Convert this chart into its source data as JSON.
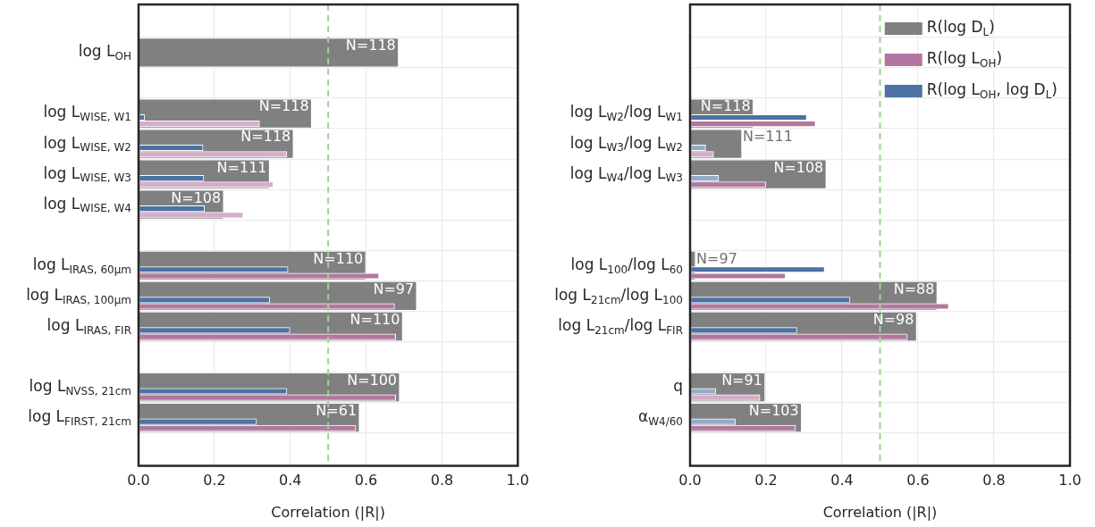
{
  "chart_data": [
    {
      "type": "bar",
      "orientation": "horizontal",
      "xlabel": "Correlation (|R|)",
      "xlim": [
        0,
        1
      ],
      "xticks": [
        {
          "value": 0,
          "label": "0.0"
        },
        {
          "value": 0.2,
          "label": "0.2"
        },
        {
          "value": 0.4,
          "label": "0.4"
        },
        {
          "value": 0.6,
          "label": "0.6"
        },
        {
          "value": 0.8,
          "label": "0.8"
        },
        {
          "value": 1,
          "label": "1.0"
        }
      ],
      "grid": true,
      "legend": false,
      "categories": [
        "log L$_{OH}$",
        null,
        "log L$_{WISE, W1}$",
        "log L$_{WISE, W2}$",
        "log L$_{WISE, W3}$",
        "log L$_{WISE, W4}$",
        null,
        "log L$_{IRAS, 60μm}$",
        "log L$_{IRAS, 100μm}$",
        "log L$_{IRAS, FIR}$",
        null,
        "log L$_{NVSS, 21cm}$",
        "log L$_{FIRST, 21cm}$"
      ],
      "series": [
        {
          "color": "#808080",
          "values": [
            0.683,
            null,
            0.454,
            0.406,
            0.343,
            0.222,
            null,
            0.597,
            0.731,
            0.694,
            null,
            0.686,
            0.58
          ]
        },
        {
          "colors": [
            "#b3779f",
            "#b3779f",
            "#d6adc8",
            "#d6adc8",
            "#d6adc8",
            "#d6adc8",
            "#b3779f",
            "#b3779f",
            "#b3779f",
            "#b3779f",
            "#b3779f",
            "#b3779f",
            "#b3779f"
          ],
          "values": [
            null,
            null,
            0.319,
            0.391,
            0.355,
            0.276,
            null,
            0.634,
            0.675,
            0.678,
            null,
            0.678,
            0.573
          ]
        },
        {
          "color": "#4c72a4",
          "values": [
            null,
            null,
            0.016,
            0.17,
            0.172,
            0.174,
            null,
            0.394,
            0.346,
            0.399,
            null,
            0.391,
            0.311
          ]
        }
      ],
      "annotations": [
        {
          "text": "N=118",
          "x": 0.683,
          "y": "log L$_{OH}$"
        },
        {
          "text": "N=118",
          "x": 0.454,
          "y": "log L$_{WISE, W1}$"
        },
        {
          "text": "N=118",
          "x": 0.406,
          "y": "log L$_{WISE, W2}$"
        },
        {
          "text": "N=111",
          "x": 0.343,
          "y": "log L$_{WISE, W3}$"
        },
        {
          "text": "N=108",
          "x": 0.222,
          "y": "log L$_{WISE, W4}$"
        },
        {
          "text": "N=110",
          "x": 0.597,
          "y": "log L$_{IRAS, 60μm}$"
        },
        {
          "text": "N=97",
          "x": 0.731,
          "y": "log L$_{IRAS, 100μm}$"
        },
        {
          "text": "N=110",
          "x": 0.694,
          "y": "log L$_{IRAS, FIR}$"
        },
        {
          "text": "N=100",
          "x": 0.686,
          "y": "log L$_{NVSS, 21cm}$"
        },
        {
          "text": "N=61",
          "x": 0.58,
          "y": "log L$_{FIRST, 21cm}$"
        }
      ],
      "ref_lines": [
        {
          "axis": "x",
          "value": 0.5,
          "color": "#9fd196",
          "line_style": "dashed"
        }
      ]
    },
    {
      "type": "bar",
      "orientation": "horizontal",
      "xlabel": "Correlation (|R|)",
      "xlim": [
        0,
        1
      ],
      "xticks": [
        {
          "value": 0,
          "label": "0.0"
        },
        {
          "value": 0.2,
          "label": "0.2"
        },
        {
          "value": 0.4,
          "label": "0.4"
        },
        {
          "value": 0.6,
          "label": "0.6"
        },
        {
          "value": 0.8,
          "label": "0.8"
        },
        {
          "value": 1,
          "label": "1.0"
        }
      ],
      "grid": true,
      "legend": "top right",
      "categories": [
        null,
        null,
        "log L$_{W2}$/log L$_{W1}$",
        "log L$_{W3}$/log L$_{W2}$",
        "log L$_{W4}$/log L$_{W3}$",
        null,
        null,
        "log L$_{100}$/log L$_{60}$",
        "log L$_{21cm}$/log L$_{100}$",
        "log L$_{21cm}$/log L$_{FIR}$",
        null,
        "q",
        "α$_{W4/60}$"
      ],
      "series": [
        {
          "name": "R(log D$_{L}$)",
          "color": "#808080",
          "values": [
            null,
            null,
            0.164,
            0.134,
            0.356,
            null,
            null,
            0.012,
            0.648,
            0.594,
            null,
            0.195,
            0.291
          ]
        },
        {
          "name": "R(log L$_{OH}$)",
          "color": "#b3779f",
          "colors": [
            "#b3779f",
            "#b3779f",
            "#b3779f",
            "#d6adc8",
            "#b3779f",
            "#b3779f",
            "#b3779f",
            "#b3779f",
            "#b3779f",
            "#b3779f",
            "#b3779f",
            "#d6adc8",
            "#b3779f"
          ],
          "values": [
            null,
            null,
            0.33,
            0.062,
            0.199,
            null,
            null,
            0.251,
            0.681,
            0.572,
            null,
            0.184,
            0.278
          ]
        },
        {
          "name": "R(log L$_{OH}$, log D$_{L}$)",
          "color": "#4c72a4",
          "colors": [
            "#4c72a4",
            "#4c72a4",
            "#4c72a4",
            "#93abcb",
            "#93abcb",
            "#4c72a4",
            "#4c72a4",
            "#4c72a4",
            "#4c72a4",
            "#4c72a4",
            "#4c72a4",
            "#93abcb",
            "#93abcb"
          ],
          "values": [
            null,
            null,
            0.307,
            0.041,
            0.075,
            null,
            null,
            0.354,
            0.421,
            0.281,
            null,
            0.068,
            0.119
          ]
        }
      ],
      "annotations": [
        {
          "text": "N=118",
          "x": 0.164,
          "y": "log L$_{W2}$/log L$_{W1}$"
        },
        {
          "text": "N=111",
          "x": 0.134,
          "y": "log L$_{W3}$/log L$_{W2}$"
        },
        {
          "text": "N=108",
          "x": 0.356,
          "y": "log L$_{W4}$/log L$_{W3}$"
        },
        {
          "text": "N=97",
          "x": 0.012,
          "y": "log L$_{100}$/log L$_{60}$"
        },
        {
          "text": "N=88",
          "x": 0.648,
          "y": "log L$_{21cm}$/log L$_{100}$"
        },
        {
          "text": "N=98",
          "x": 0.594,
          "y": "log L$_{21cm}$/log L$_{FIR}$"
        },
        {
          "text": "N=91",
          "x": 0.195,
          "y": "q"
        },
        {
          "text": "N=103",
          "x": 0.291,
          "y": "α$_{W4/60}$"
        }
      ],
      "ref_lines": [
        {
          "axis": "x",
          "value": 0.5,
          "color": "#9fd196",
          "line_style": "dashed"
        }
      ]
    }
  ]
}
